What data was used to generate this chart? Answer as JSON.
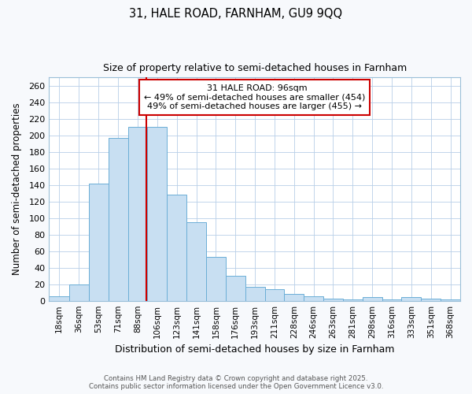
{
  "title1": "31, HALE ROAD, FARNHAM, GU9 9QQ",
  "title2": "Size of property relative to semi-detached houses in Farnham",
  "xlabel": "Distribution of semi-detached houses by size in Farnham",
  "ylabel": "Number of semi-detached properties",
  "property_size": 96,
  "property_label": "31 HALE ROAD: 96sqm",
  "annotation_line1": "← 49% of semi-detached houses are smaller (454)",
  "annotation_line2": "49% of semi-detached houses are larger (455) →",
  "footer1": "Contains HM Land Registry data © Crown copyright and database right 2025.",
  "footer2": "Contains public sector information licensed under the Open Government Licence v3.0.",
  "bar_color": "#c8dff2",
  "bar_edge_color": "#6baed6",
  "vline_color": "#cc0000",
  "box_edge_color": "#cc0000",
  "box_face_color": "#ffffff",
  "categories": [
    "18sqm",
    "36sqm",
    "53sqm",
    "71sqm",
    "88sqm",
    "106sqm",
    "123sqm",
    "141sqm",
    "158sqm",
    "176sqm",
    "193sqm",
    "211sqm",
    "228sqm",
    "246sqm",
    "263sqm",
    "281sqm",
    "298sqm",
    "316sqm",
    "333sqm",
    "351sqm",
    "368sqm"
  ],
  "values": [
    5,
    20,
    142,
    197,
    210,
    210,
    128,
    95,
    53,
    30,
    17,
    14,
    8,
    5,
    3,
    2,
    4,
    2,
    4,
    3,
    2
  ],
  "bin_edges": [
    9,
    27,
    44.5,
    62,
    79.5,
    97,
    114.5,
    132,
    149.5,
    167,
    184.5,
    202,
    219.5,
    237,
    254.5,
    272,
    289.5,
    307,
    324.5,
    342,
    359.5,
    377
  ],
  "ylim": [
    0,
    270
  ],
  "yticks": [
    0,
    20,
    40,
    60,
    80,
    100,
    120,
    140,
    160,
    180,
    200,
    220,
    240,
    260
  ],
  "background_color": "#ffffff",
  "fig_bg_color": "#f7f9fc"
}
